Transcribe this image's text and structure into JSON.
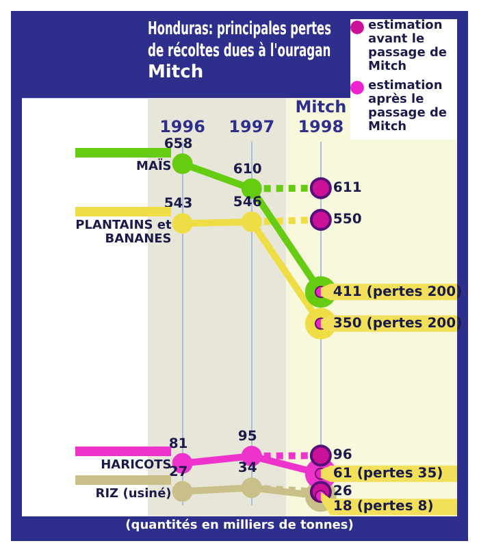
{
  "chart_data": {
    "type": "line",
    "title": "Honduras: principales pertes de récoltes dues à l'ouragan Mitch",
    "categories": [
      "1996",
      "1997",
      "Mitch 1998"
    ],
    "series": [
      {
        "name": "MAÏS",
        "color": "#66cc11",
        "values": [
          658,
          610,
          411
        ],
        "value_labels": [
          "658",
          "610",
          null
        ]
      },
      {
        "color": "#66cc11",
        "values": [
          null,
          610,
          611
        ],
        "line_style": "dashed",
        "marker": "none"
      },
      {
        "name": "PLANTAINS et BANANES",
        "color": "#eedd44",
        "values": [
          543,
          546,
          350
        ],
        "value_labels": [
          "543",
          "546",
          null
        ]
      },
      {
        "color": "#eedd44",
        "values": [
          null,
          546,
          550
        ],
        "line_style": "dashed",
        "marker": "none"
      },
      {
        "name": "HARICOTS",
        "color": "#ee33cc",
        "values": [
          81,
          95,
          61
        ],
        "value_labels": [
          "81",
          "95",
          null
        ]
      },
      {
        "color": "#ee33cc",
        "values": [
          null,
          95,
          96
        ],
        "line_style": "dashed",
        "marker": "none"
      },
      {
        "name": "RIZ (usiné)",
        "color": "#c8c088",
        "values": [
          27,
          34,
          18
        ],
        "value_labels": [
          "27",
          "34",
          null
        ]
      },
      {
        "color": "#c8c088",
        "values": [
          null,
          34,
          26
        ],
        "line_style": "dashed",
        "marker": "none"
      },
      {
        "name": "estimation avant le passage de Mitch",
        "type": "scatter",
        "color": "#cc1199",
        "x": [
          "Mitch 1998",
          "Mitch 1998",
          "Mitch 1998",
          "Mitch 1998"
        ],
        "values": [
          611,
          550,
          96,
          26
        ],
        "value_labels": [
          "611",
          "550",
          "96",
          "26"
        ]
      },
      {
        "name": "estimation après le passage de Mitch",
        "type": "scatter",
        "color": "#ee22cc",
        "x": [
          "Mitch 1998",
          "Mitch 1998",
          "Mitch 1998",
          "Mitch 1998"
        ],
        "values": [
          411,
          350,
          61,
          18
        ],
        "value_labels": [
          "411 (pertes 200)",
          "350 (pertes 200)",
          "61 (pertes 35)",
          "18 (pertes 8)"
        ]
      }
    ],
    "annotations": [
      "(quantités en milliers de tonnes)"
    ],
    "marker": "circle",
    "legend": "top right",
    "grid": "x"
  }
}
